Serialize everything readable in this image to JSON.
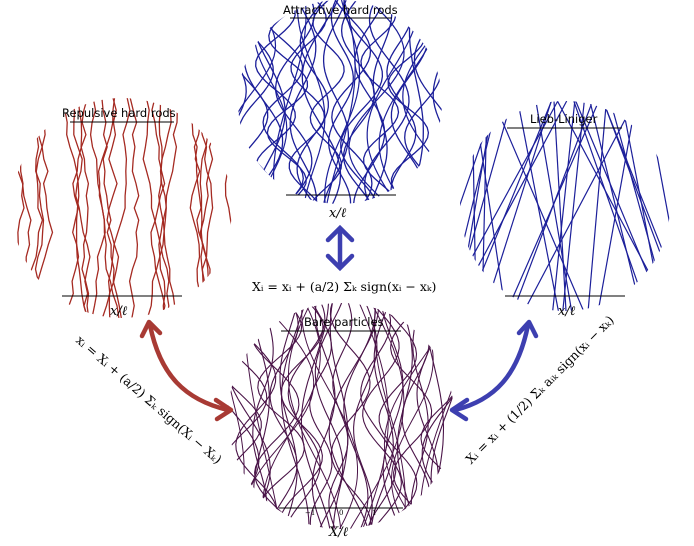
{
  "panels": {
    "attractive": {
      "title": "Attractive hard rods",
      "xlabel": "x/ℓ",
      "color": "#1c1f9a"
    },
    "repulsive": {
      "title": "Repulsive hard rods",
      "xlabel": "x/ℓ",
      "color": "#a52a22"
    },
    "lieb": {
      "title": "Lieb-Liniger",
      "xlabel": "x/ℓ",
      "color": "#1c1f9a"
    },
    "bare": {
      "title": "Bare particles",
      "xlabel": "X/ℓ",
      "color": "#4a1448",
      "ticks": [
        "−1",
        "0",
        "1"
      ]
    }
  },
  "equations": {
    "top": "Xᵢ = xᵢ + (a/2) Σₖ sign(xᵢ − xₖ)",
    "left": "xᵢ = Xᵢ + (a/2) Σₖ sign(Xᵢ − Xₖ)",
    "right": "Xᵢ = xᵢ + (1/2) Σₖ aᵢₖ sign(xᵢ − xₖ)"
  },
  "arrow_colors": {
    "top": "#3d3fb0",
    "left": "#a83a34",
    "right": "#3d3fb0"
  }
}
